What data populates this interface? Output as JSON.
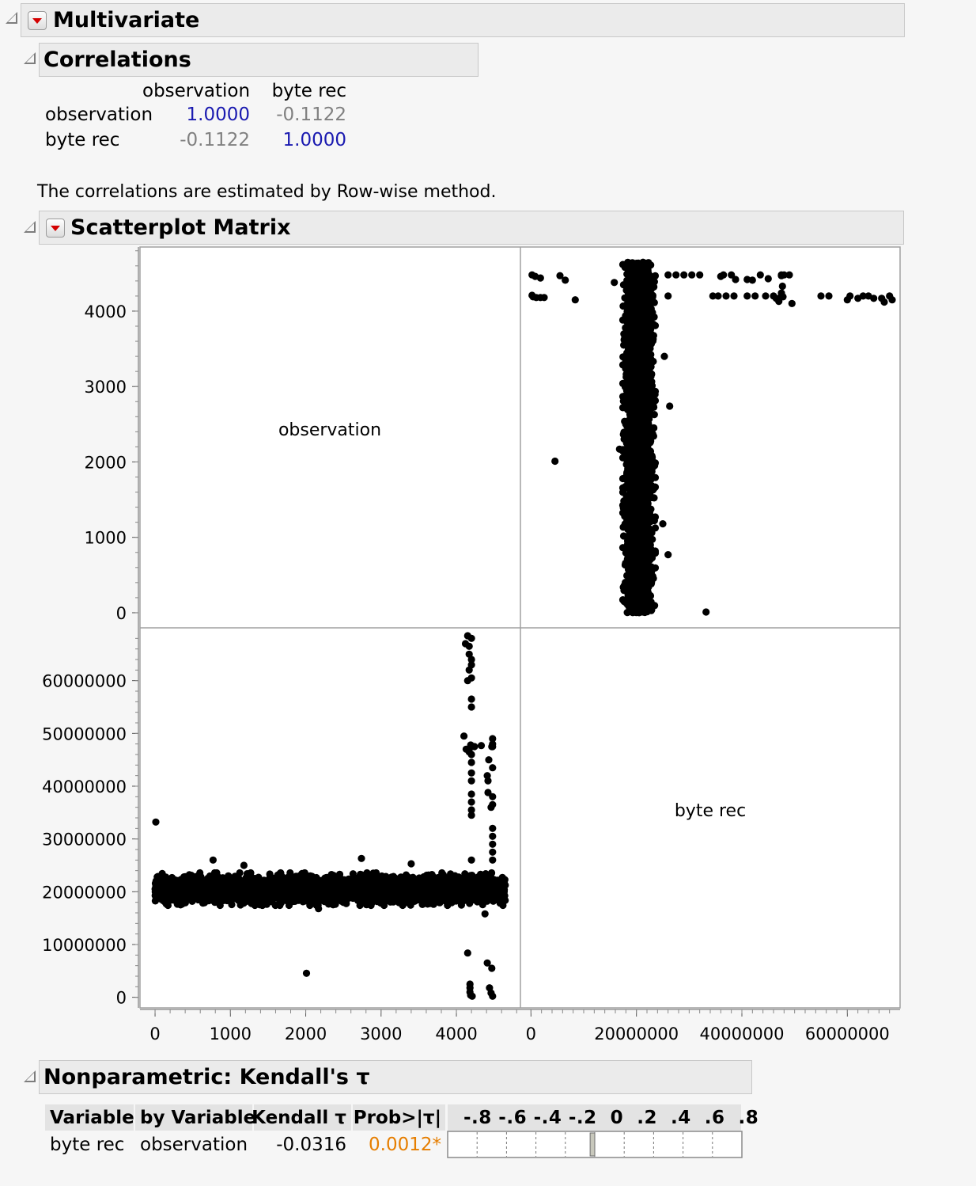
{
  "multivariate": {
    "title": "Multivariate"
  },
  "correlations": {
    "title": "Correlations",
    "col_headers": [
      "observation",
      "byte rec"
    ],
    "rows": [
      {
        "label": "observation",
        "values": [
          "1.0000",
          "-0.1122"
        ]
      },
      {
        "label": "byte rec",
        "values": [
          "-0.1122",
          "1.0000"
        ]
      }
    ],
    "note": "The correlations are estimated by Row-wise method.",
    "colors": {
      "diagonal": "#1a1ab0",
      "off_diagonal": "#808080"
    }
  },
  "scatterplot": {
    "title": "Scatterplot Matrix",
    "diag_labels": [
      "observation",
      "byte rec"
    ]
  },
  "chart_data": {
    "type": "scatter",
    "variables": [
      "observation",
      "byte rec"
    ],
    "observation_axis": {
      "range": [
        -200,
        4850
      ],
      "ticks": [
        0,
        1000,
        2000,
        3000,
        4000
      ],
      "tick_labels": [
        "0",
        "1000",
        "2000",
        "3000",
        "4000"
      ]
    },
    "byte_rec_axis": {
      "range": [
        -2000000,
        70000000
      ],
      "ticks": [
        0,
        20000000,
        40000000,
        60000000
      ],
      "tick_labels": [
        "0",
        "20000000",
        "40000000",
        "60000000"
      ],
      "y_ticks": [
        0,
        10000000,
        20000000,
        30000000,
        40000000,
        50000000,
        60000000
      ],
      "y_tick_labels": [
        "0",
        "10000000",
        "20000000",
        "30000000",
        "40000000",
        "50000000",
        "60000000"
      ]
    },
    "marker_color": "#000000",
    "dense_cluster": {
      "observation_range": [
        0,
        4650
      ],
      "byte_rec_center": 20500000,
      "byte_rec_spread": 2200000
    },
    "outliers": [
      [
        10,
        33200000
      ],
      [
        770,
        26000000
      ],
      [
        1180,
        25000000
      ],
      [
        2170,
        16800000
      ],
      [
        2740,
        26300000
      ],
      [
        3400,
        25300000
      ],
      [
        4200,
        68000000
      ],
      [
        4200,
        64000000
      ],
      [
        4200,
        60500000
      ],
      [
        4200,
        56500000
      ],
      [
        4200,
        55000000
      ],
      [
        4200,
        47500000
      ],
      [
        4200,
        46000000
      ],
      [
        4200,
        44500000
      ],
      [
        4200,
        42500000
      ],
      [
        4200,
        41000000
      ],
      [
        4200,
        38500000
      ],
      [
        4200,
        37000000
      ],
      [
        4200,
        35500000
      ],
      [
        4200,
        34500000
      ],
      [
        4200,
        26000000
      ],
      [
        4150,
        8400000
      ],
      [
        4380,
        15800000
      ],
      [
        4180,
        2500000
      ],
      [
        4180,
        1800000
      ],
      [
        4180,
        1000000
      ],
      [
        4190,
        400000
      ],
      [
        4210,
        200000
      ],
      [
        4480,
        49000000
      ],
      [
        4480,
        48000000
      ],
      [
        4480,
        47500000
      ],
      [
        4480,
        43500000
      ],
      [
        4480,
        38000000
      ],
      [
        4480,
        36500000
      ],
      [
        4480,
        32000000
      ],
      [
        4480,
        30500000
      ],
      [
        4480,
        29000000
      ],
      [
        4480,
        27500000
      ],
      [
        4480,
        26000000
      ],
      [
        4410,
        6500000
      ],
      [
        4470,
        5500000
      ],
      [
        4440,
        1800000
      ],
      [
        4460,
        800000
      ],
      [
        4480,
        200000
      ],
      [
        4100,
        49500000
      ],
      [
        4130,
        47000000
      ],
      [
        4170,
        46500000
      ],
      [
        4190,
        47800000
      ],
      [
        4240,
        47500000
      ],
      [
        4330,
        47700000
      ],
      [
        4470,
        47500000
      ],
      [
        4420,
        38800000
      ],
      [
        4460,
        36000000
      ],
      [
        4420,
        41000000
      ],
      [
        4410,
        42000000
      ],
      [
        4430,
        45000000
      ],
      [
        4150,
        60000000
      ],
      [
        4170,
        62000000
      ],
      [
        4170,
        65000000
      ],
      [
        4170,
        66500000
      ],
      [
        4120,
        67000000
      ],
      [
        4150,
        68500000
      ],
      [
        4200,
        63000000
      ],
      [
        2010,
        4550000
      ]
    ]
  },
  "kendall": {
    "title": "Nonparametric: Kendall's τ",
    "headers": [
      "Variable",
      "by Variable",
      "Kendall τ",
      "Prob>|τ|",
      "-.8 -.6 -.4 -.2  0  .2  .4  .6  .8"
    ],
    "row": {
      "variable": "byte rec",
      "by_variable": "observation",
      "tau": "-0.0316",
      "prob": "0.0012*"
    },
    "bar_value": -0.0316,
    "bar_axis": [
      -1,
      1
    ]
  }
}
